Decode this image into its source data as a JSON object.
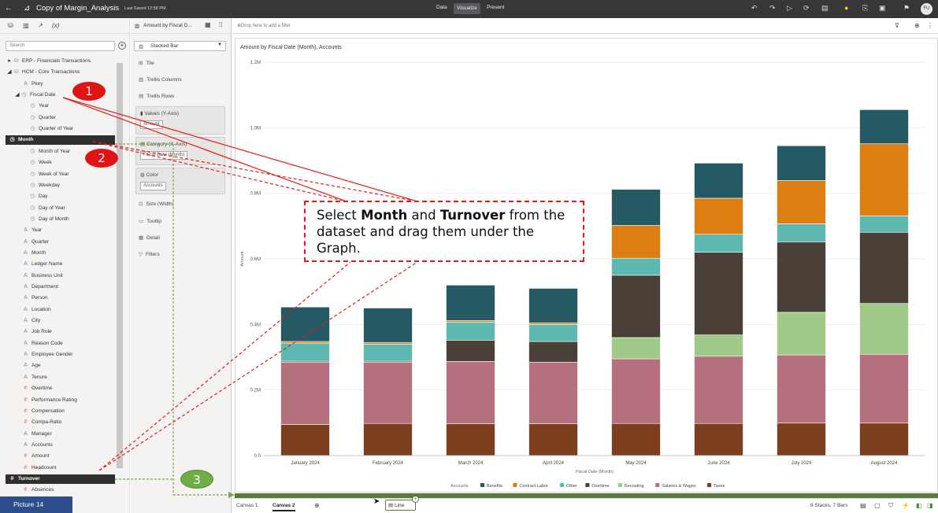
{
  "topbar": {
    "title": "Copy of Margin_Analysis",
    "saved": "Last Saved 12:58 PM",
    "modes": [
      "Data",
      "Visualize",
      "Present"
    ],
    "active_mode": "Visualize",
    "user_initials": "FU"
  },
  "left_panel": {
    "search_placeholder": "Search",
    "tree": [
      {
        "label": "ERP - Financials Transactions",
        "icon": "dataset-icon"
      },
      {
        "label": "HCM - Core Transactions",
        "icon": "dataset-icon"
      },
      {
        "label": "Pkey",
        "icon": "attribute-icon"
      },
      {
        "label": "Fiscal Date",
        "icon": "time-icon"
      },
      {
        "label": "Year",
        "icon": "time-icon"
      },
      {
        "label": "Quarter",
        "icon": "time-icon"
      },
      {
        "label": "Quarter of Year",
        "icon": "time-icon"
      },
      {
        "label": "Month",
        "icon": "time-icon"
      },
      {
        "label": "Month of Year",
        "icon": "time-icon"
      },
      {
        "label": "Week",
        "icon": "time-icon"
      },
      {
        "label": "Week of Year",
        "icon": "time-icon"
      },
      {
        "label": "Weekday",
        "icon": "time-icon"
      },
      {
        "label": "Day",
        "icon": "time-icon"
      },
      {
        "label": "Day of Year",
        "icon": "time-icon"
      },
      {
        "label": "Day of Month",
        "icon": "time-icon"
      },
      {
        "label": "Year",
        "icon": "attribute-icon"
      },
      {
        "label": "Quarter",
        "icon": "attribute-icon"
      },
      {
        "label": "Month",
        "icon": "attribute-icon"
      },
      {
        "label": "Ledger Name",
        "icon": "attribute-icon"
      },
      {
        "label": "Business Unit",
        "icon": "attribute-icon"
      },
      {
        "label": "Department",
        "icon": "attribute-icon"
      },
      {
        "label": "Person",
        "icon": "attribute-icon"
      },
      {
        "label": "Location",
        "icon": "attribute-icon"
      },
      {
        "label": "City",
        "icon": "attribute-icon"
      },
      {
        "label": "Job Role",
        "icon": "attribute-icon"
      },
      {
        "label": "Reason Code",
        "icon": "attribute-icon"
      },
      {
        "label": "Employee Gender",
        "icon": "attribute-icon"
      },
      {
        "label": "Age",
        "icon": "attribute-icon"
      },
      {
        "label": "Tenure",
        "icon": "attribute-icon"
      },
      {
        "label": "Overtime",
        "icon": "measure-icon"
      },
      {
        "label": "Performance Rating",
        "icon": "measure-icon"
      },
      {
        "label": "Compensation",
        "icon": "measure-icon"
      },
      {
        "label": "Compa-Ratio",
        "icon": "measure-icon"
      },
      {
        "label": "Manager",
        "icon": "attribute-icon"
      },
      {
        "label": "Accounts",
        "icon": "attribute-icon"
      },
      {
        "label": "Amount",
        "icon": "measure-icon"
      },
      {
        "label": "Headcount",
        "icon": "measure-icon"
      },
      {
        "label": "Turnover",
        "icon": "measure-icon"
      },
      {
        "label": "Absences",
        "icon": "measure-icon"
      }
    ]
  },
  "grammar_panel": {
    "header": "Amount by Fiscal D...",
    "chart_type": "Stacked Bar",
    "rows": [
      "Tile",
      "Trellis Columns",
      "Trellis Rows"
    ],
    "values_label": "Values (Y-Axis)",
    "values_pill": "Amount",
    "category_label": "Category (X-Axis)",
    "category_pill": "Fiscal Date (Month)",
    "color_label": "Color",
    "color_pill": "Accounts",
    "rows2": [
      "Size (Width)",
      "Tooltip",
      "Detail",
      "Filters"
    ]
  },
  "filterbar": {
    "placeholder": "Drop here to add a filter"
  },
  "chart_data": {
    "type": "bar",
    "stacked": true,
    "title": "Amount by Fiscal Date (Month), Accounts",
    "xlabel": "Fiscal Date (Month)",
    "ylabel": "Amount",
    "ylim": [
      0,
      1200000
    ],
    "yticks": [
      "0.0",
      "0.2M",
      "0.4M",
      "0.6M",
      "0.8M",
      "1.0M",
      "1.2M"
    ],
    "legend_title": "Accounts",
    "legend_position": "bottom",
    "grid": true,
    "categories": [
      "January 2024",
      "February 2024",
      "March 2024",
      "April 2024",
      "May 2024",
      "June 2024",
      "July 2024",
      "August 2024"
    ],
    "series": [
      {
        "name": "Taxes",
        "color": "#7b3e1f",
        "values": [
          95000,
          98000,
          97000,
          97000,
          98000,
          98000,
          99000,
          99000
        ]
      },
      {
        "name": "Salaries & Wages",
        "color": "#b5707e",
        "values": [
          190000,
          187000,
          190000,
          188000,
          197000,
          205000,
          208000,
          210000
        ]
      },
      {
        "name": "Recruiting",
        "color": "#a1c98a",
        "values": [
          0,
          0,
          0,
          0,
          65000,
          65000,
          130000,
          155000
        ]
      },
      {
        "name": "Overtime",
        "color": "#4a4038",
        "values": [
          3000,
          3000,
          65000,
          63000,
          190000,
          252000,
          215000,
          217000
        ]
      },
      {
        "name": "Other",
        "color": "#5eb8b2",
        "values": [
          55000,
          52000,
          55000,
          52000,
          52000,
          55000,
          55000,
          50000
        ]
      },
      {
        "name": "Contract Labor",
        "color": "#de7e12",
        "values": [
          5000,
          5000,
          5000,
          5000,
          100000,
          110000,
          132000,
          220000
        ]
      },
      {
        "name": "Benefits",
        "color": "#255a64",
        "values": [
          105000,
          105000,
          108000,
          105000,
          110000,
          107000,
          106000,
          104000
        ]
      }
    ],
    "legend_order": [
      "Benefits",
      "Contract Labor",
      "Other",
      "Overtime",
      "Recruiting",
      "Salaries & Wages",
      "Taxes"
    ]
  },
  "bottombar": {
    "tabs": [
      "Canvas 1",
      "Canvas 2"
    ],
    "active_tab": "Canvas 2",
    "info": "8 Stacks, 7 Bars",
    "line_pill": "Line"
  },
  "annotations": {
    "callout_pre": "Select ",
    "callout_b1": "Month",
    "callout_mid": " and ",
    "callout_b2": "Turnover",
    "callout_post": " from the dataset and drag them under the Graph.",
    "badge1": "1",
    "badge2": "2",
    "badge3": "3",
    "picture_label": "Picture  14"
  }
}
